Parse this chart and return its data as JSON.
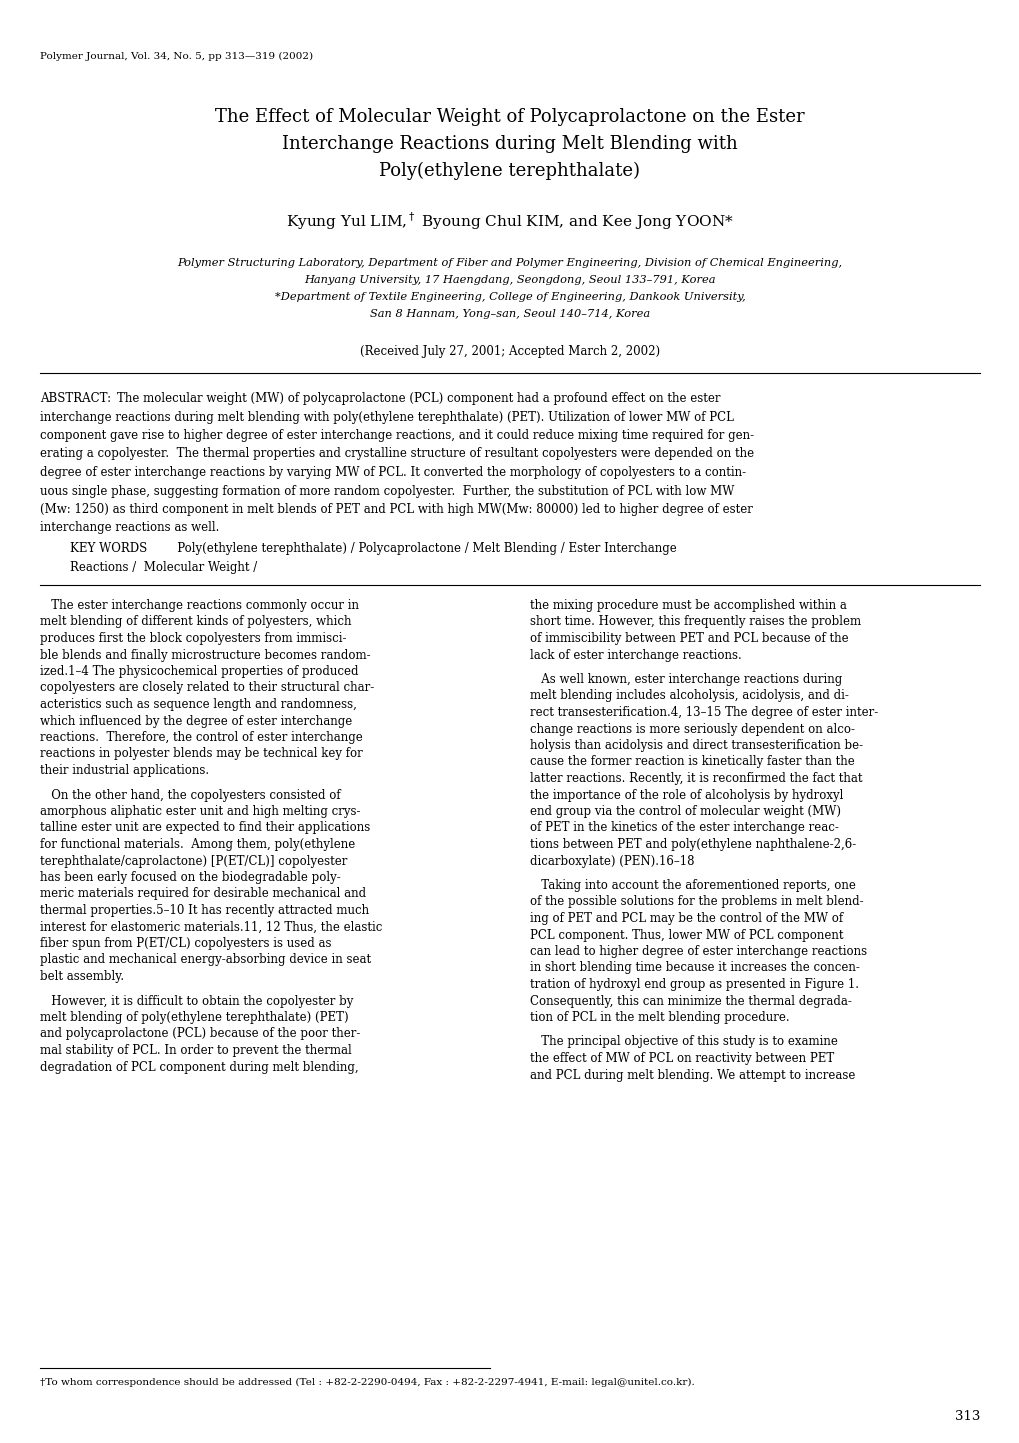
{
  "page_width": 10.2,
  "page_height": 14.43,
  "dpi": 100,
  "background_color": "#ffffff",
  "journal_header": "Polymer Journal, Vol. 34, No. 5, pp 313—319 (2002)",
  "title_line1": "The Effect of Molecular Weight of Polycaprolactone on the Ester",
  "title_line2": "Interchange Reactions during Melt Blending with",
  "title_line3": "Poly(ethylene terephthalate)",
  "affil1": "Polymer Structuring Laboratory, Department of Fiber and Polymer Engineering, Division of Chemical Engineering,",
  "affil2": "Hanyang University, 17 Haengdang, Seongdong, Seoul 133–791, Korea",
  "affil3": "*Department of Textile Engineering, College of Engineering, Dankook University,",
  "affil4": "San 8 Hannam, Yong–san, Seoul 140–714, Korea",
  "received": "(Received July 27, 2001; Accepted March 2, 2002)",
  "footer_text": "†To whom correspondence should be addressed (Tel : +82-2-2290-0494, Fax : +82-2-2297-4941, E-mail: legal@unitel.co.kr).",
  "page_number": "313",
  "abstract_lines": [
    "ABSTRACT:        The molecular weight (MW) of polycaprolactone (PCL) component had a profound effect on the ester",
    "interchange reactions during melt blending with poly(ethylene terephthalate) (PET). Utilization of lower MW of PCL",
    "component gave rise to higher degree of ester interchange reactions, and it could reduce mixing time required for gen-",
    "erating a copolyester.  The thermal properties and crystalline structure of resultant copolyesters were depended on the",
    "degree of ester interchange reactions by varying MW of PCL. It converted the morphology of copolyesters to a contin-",
    "uous single phase, suggesting formation of more random copolyester.  Further, the substitution of PCL with low MW",
    "(Mw: 1250) as third component in melt blends of PET and PCL with high MW(Mw: 80000) led to higher degree of ester",
    "interchange reactions as well."
  ],
  "kw_line1": "        KEY WORDS        Poly(ethylene terephthalate) / Polycaprolactone / Melt Blending / Ester Interchange",
  "kw_line2": "        Reactions /  Molecular Weight /",
  "col1_lines": [
    "   The ester interchange reactions commonly occur in",
    "melt blending of different kinds of polyesters, which",
    "produces first the block copolyesters from immisci-",
    "ble blends and finally microstructure becomes random-",
    "ized.1–4 The physicochemical properties of produced",
    "copolyesters are closely related to their structural char-",
    "acteristics such as sequence length and randomness,",
    "which influenced by the degree of ester interchange",
    "reactions.  Therefore, the control of ester interchange",
    "reactions in polyester blends may be technical key for",
    "their industrial applications.",
    "",
    "   On the other hand, the copolyesters consisted of",
    "amorphous aliphatic ester unit and high melting crys-",
    "talline ester unit are expected to find their applications",
    "for functional materials.  Among them, poly(ethylene",
    "terephthalate/caprolactone) [P(ET/CL)] copolyester",
    "has been early focused on the biodegradable poly-",
    "meric materials required for desirable mechanical and",
    "thermal properties.5–10 It has recently attracted much",
    "interest for elastomeric materials.11, 12 Thus, the elastic",
    "fiber spun from P(ET/CL) copolyesters is used as",
    "plastic and mechanical energy-absorbing device in seat",
    "belt assembly.",
    "",
    "   However, it is difficult to obtain the copolyester by",
    "melt blending of poly(ethylene terephthalate) (PET)",
    "and polycaprolactone (PCL) because of the poor ther-",
    "mal stability of PCL. In order to prevent the thermal",
    "degradation of PCL component during melt blending,"
  ],
  "col2_lines": [
    "the mixing procedure must be accomplished within a",
    "short time. However, this frequently raises the problem",
    "of immiscibility between PET and PCL because of the",
    "lack of ester interchange reactions.",
    "",
    "   As well known, ester interchange reactions during",
    "melt blending includes alcoholysis, acidolysis, and di-",
    "rect transesterification.4, 13–15 The degree of ester inter-",
    "change reactions is more seriously dependent on alco-",
    "holysis than acidolysis and direct transesterification be-",
    "cause the former reaction is kinetically faster than the",
    "latter reactions. Recently, it is reconfirmed the fact that",
    "the importance of the role of alcoholysis by hydroxyl",
    "end group via the control of molecular weight (MW)",
    "of PET in the kinetics of the ester interchange reac-",
    "tions between PET and poly(ethylene naphthalene-2,6-",
    "dicarboxylate) (PEN).16–18",
    "",
    "   Taking into account the aforementioned reports, one",
    "of the possible solutions for the problems in melt blend-",
    "ing of PET and PCL may be the control of the MW of",
    "PCL component. Thus, lower MW of PCL component",
    "can lead to higher degree of ester interchange reactions",
    "in short blending time because it increases the concen-",
    "tration of hydroxyl end group as presented in Figure 1.",
    "Consequently, this can minimize the thermal degrada-",
    "tion of PCL in the melt blending procedure.",
    "",
    "   The principal objective of this study is to examine",
    "the effect of MW of PCL on reactivity between PET",
    "and PCL during melt blending. We attempt to increase"
  ]
}
